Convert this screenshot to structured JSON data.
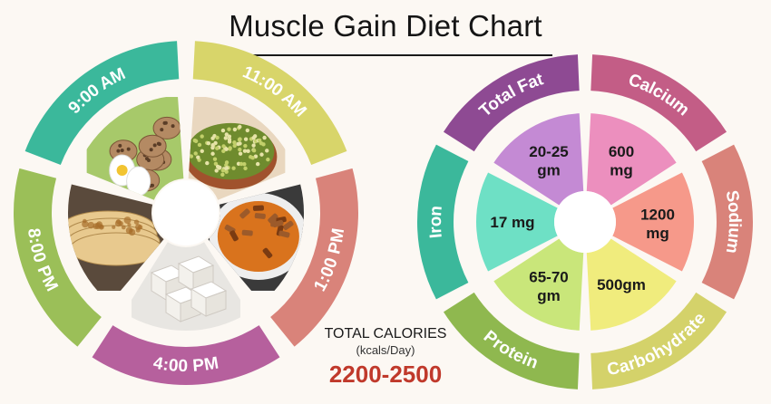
{
  "title": "Muscle Gain Diet Chart",
  "colors": {
    "background": "#fcf8f3",
    "accent_red": "#c0392b",
    "teal": "#3bb89b",
    "yellow": "#d8d56a",
    "salmon": "#d9837a",
    "purple": "#b6609d",
    "green": "#9bbf58",
    "pink": "#c35d86",
    "mint": "#6ee0c5",
    "lime": "#c9e67a",
    "pale_yellow": "#f0ec7d",
    "light_pink": "#ec8fbe",
    "light_purple": "#c48ad4",
    "peach": "#f6998a"
  },
  "meal_schedule": [
    {
      "time": "9:00 AM",
      "food": "boiled-eggs",
      "color": "#3bb89b"
    },
    {
      "time": "11:00 AM",
      "food": "sprouts",
      "color": "#d8d56a"
    },
    {
      "time": "1:00 PM",
      "food": "curry",
      "color": "#d9837a"
    },
    {
      "time": "4:00 PM",
      "food": "paneer",
      "color": "#b6609d"
    },
    {
      "time": "8:00 PM",
      "food": "chapati",
      "color": "#9bbf58"
    }
  ],
  "nutrients": [
    {
      "name": "Total Fat",
      "amount": "20-25 gm",
      "line1": "20-25",
      "line2": "gm",
      "ring_color": "#8e4a93",
      "slice_color": "#c48ad4"
    },
    {
      "name": "Calcium",
      "amount": "600 mg",
      "line1": "600",
      "line2": "mg",
      "ring_color": "#c35d86",
      "slice_color": "#ec8fbe"
    },
    {
      "name": "Sodium",
      "amount": "1200 mg",
      "line1": "1200",
      "line2": "mg",
      "ring_color": "#d9837a",
      "slice_color": "#f6998a"
    },
    {
      "name": "Carbohydrate",
      "amount": "500gm",
      "line1": "500gm",
      "line2": "",
      "ring_color": "#d4d26a",
      "slice_color": "#f0ec7d"
    },
    {
      "name": "Protein",
      "amount": "65-70 gm",
      "line1": "65-70",
      "line2": "gm",
      "ring_color": "#8fb84f",
      "slice_color": "#c9e67a"
    },
    {
      "name": "Iron",
      "amount": "17 mg",
      "line1": "17 mg",
      "line2": "",
      "ring_color": "#3bb89b",
      "slice_color": "#6ee0c5"
    }
  ],
  "total_calories": {
    "label": "TOTAL CALORIES",
    "unit": "(kcals/Day)",
    "value": "2200-2500"
  }
}
